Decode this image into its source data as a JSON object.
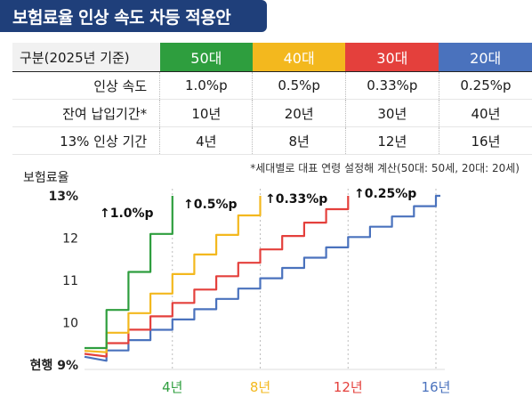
{
  "title": "보험료율 인상 속도 차등 적용안",
  "table": {
    "header_label": "구분(2025년 기준)",
    "groups": [
      "50대",
      "40대",
      "30대",
      "20대"
    ],
    "group_colors": [
      "#2e9e3e",
      "#f3b81e",
      "#e4403c",
      "#4a72bd"
    ],
    "rows": [
      {
        "label": "인상 속도",
        "values": [
          "1.0%p",
          "0.5%p",
          "0.33%p",
          "0.25%p"
        ]
      },
      {
        "label": "잔여 납입기간*",
        "values": [
          "10년",
          "20년",
          "30년",
          "40년"
        ]
      },
      {
        "label": "13% 인상 기간",
        "values": [
          "4년",
          "8년",
          "12년",
          "16년"
        ]
      }
    ]
  },
  "note": "*세대별로 대표 연령 설정해 계산(50대: 50세, 20대: 20세)",
  "chart_data": {
    "type": "line",
    "ylabel": "보험료율",
    "ylim": [
      9,
      13
    ],
    "xlim": [
      0,
      16
    ],
    "y_ticks": [
      "현행 9%",
      "10",
      "11",
      "12",
      "13%"
    ],
    "x_ticks": [
      {
        "x": 4,
        "label": "4년",
        "color": "#2e9e3e"
      },
      {
        "x": 8,
        "label": "8년",
        "color": "#f3b81e"
      },
      {
        "x": 12,
        "label": "12년",
        "color": "#e4403c"
      },
      {
        "x": 16,
        "label": "16년",
        "color": "#4a72bd"
      }
    ],
    "series": [
      {
        "name": "50대",
        "color": "#2e9e3e",
        "step": 1.0,
        "end_year": 4,
        "annotation": "↑1.0%p"
      },
      {
        "name": "40대",
        "color": "#f3b81e",
        "step": 0.5,
        "end_year": 8,
        "annotation": "↑0.5%p"
      },
      {
        "name": "30대",
        "color": "#e4403c",
        "step": 0.33,
        "end_year": 12,
        "annotation": "↑0.33%p"
      },
      {
        "name": "20대",
        "color": "#4a72bd",
        "step": 0.25,
        "end_year": 16,
        "annotation": "↑0.25%p"
      }
    ]
  }
}
